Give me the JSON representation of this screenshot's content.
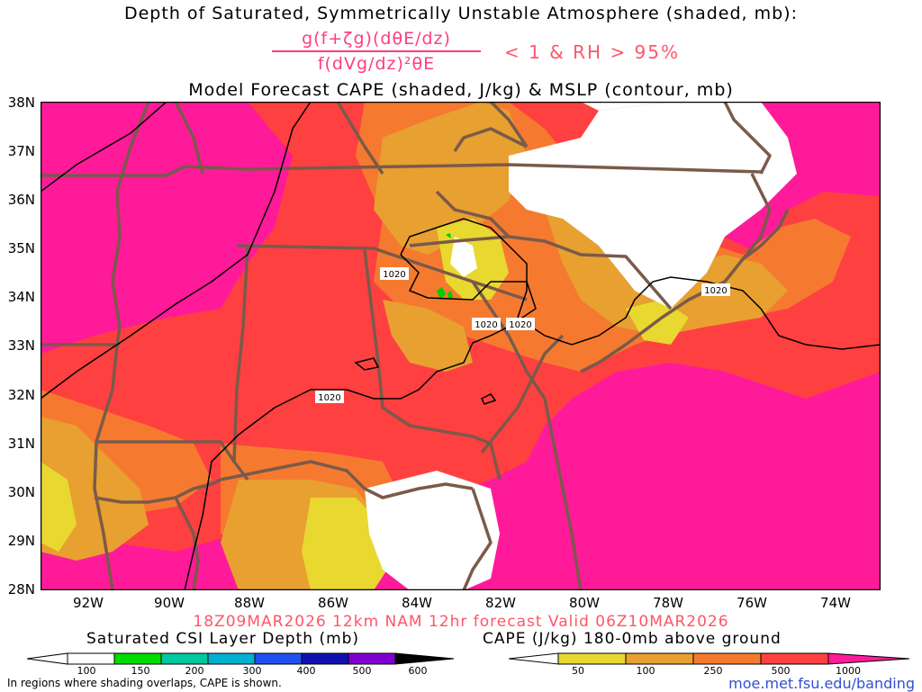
{
  "titles": {
    "line1": "Depth of Saturated, Symmetrically Unstable Atmosphere (shaded, mb):",
    "numerator": "g(f+ζg)(dθE/dz)",
    "denominator": "f(dVg/dz)²θE",
    "condition": "< 1 & RH > 95%",
    "line3": "Model Forecast CAPE (shaded, J/kg) & MSLP (contour, mb)",
    "valid": "18Z09MAR2026 12km NAM 12hr forecast Valid 06Z10MAR2026"
  },
  "map": {
    "lat_labels": [
      "38N",
      "37N",
      "36N",
      "35N",
      "34N",
      "33N",
      "32N",
      "31N",
      "30N",
      "29N",
      "28N"
    ],
    "lon_labels": [
      "92W",
      "90W",
      "88W",
      "86W",
      "84W",
      "82W",
      "80W",
      "78W",
      "76W",
      "74W"
    ],
    "isobars": [
      {
        "label": "1020"
      },
      {
        "label": "1020"
      },
      {
        "label": "1020"
      },
      {
        "label": "1020"
      },
      {
        "label": "1020"
      }
    ],
    "colors": {
      "cape_1000": "#ff1a9a",
      "cape_500": "#ff4040",
      "cape_250": "#f57a30",
      "cape_100": "#e8a030",
      "cape_50": "#e8d830",
      "csi": "#00cc00",
      "borders": "#7a5a4a"
    }
  },
  "legend_csi": {
    "title": "Saturated CSI Layer Depth (mb)",
    "ticks": [
      "100",
      "150",
      "200",
      "300",
      "400",
      "500",
      "600"
    ],
    "colors": [
      "#ffffff",
      "#00dd00",
      "#00c8a0",
      "#00b0d0",
      "#2050f0",
      "#1010b0",
      "#8000d0",
      "#000000"
    ]
  },
  "legend_cape": {
    "title": "CAPE (J/kg) 180-0mb above ground",
    "ticks": [
      "50",
      "100",
      "250",
      "500",
      "1000"
    ],
    "colors": [
      "#ffffff",
      "#e8d830",
      "#e8a030",
      "#f57a30",
      "#ff4040",
      "#ff1a9a"
    ]
  },
  "footnote": "In regions where shading overlaps, CAPE is shown.",
  "url": "moe.met.fsu.edu/banding"
}
